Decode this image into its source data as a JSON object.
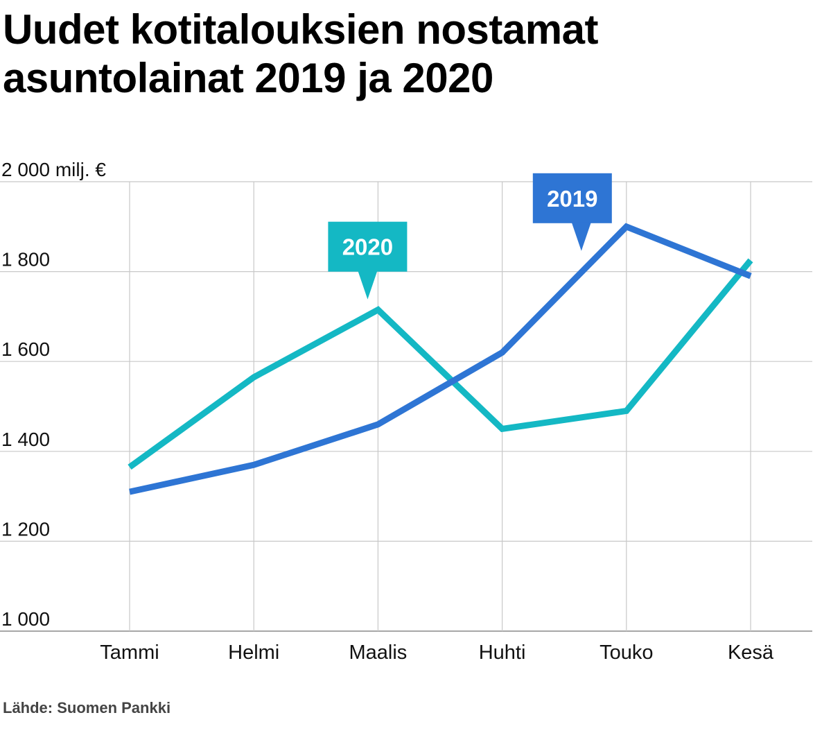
{
  "chart_data": {
    "type": "line",
    "title_lines": [
      "Uudet kotitalouksien nostamat",
      "asuntolainat 2019 ja 2020"
    ],
    "unit_label": "2 000 milj. €",
    "categories": [
      "Tammi",
      "Helmi",
      "Maalis",
      "Huhti",
      "Touko",
      "Kesä"
    ],
    "y_ticks": [
      {
        "value": 2000,
        "label": "2 000 milj. €"
      },
      {
        "value": 1800,
        "label": "1 800"
      },
      {
        "value": 1600,
        "label": "1 600"
      },
      {
        "value": 1400,
        "label": "1 400"
      },
      {
        "value": 1200,
        "label": "1 200"
      },
      {
        "value": 1000,
        "label": "1 000"
      }
    ],
    "ylim": [
      1000,
      2000
    ],
    "grid": true,
    "series": [
      {
        "name": "2019",
        "color": "#2e75d4",
        "values": [
          1310,
          1370,
          1460,
          1620,
          1900,
          1790
        ],
        "label_at_index": 4
      },
      {
        "name": "2020",
        "color": "#14b8c4",
        "values": [
          1365,
          1565,
          1715,
          1450,
          1490,
          1825
        ],
        "label_at_index": 2
      }
    ],
    "source": "Lähde: Suomen Pankki"
  }
}
